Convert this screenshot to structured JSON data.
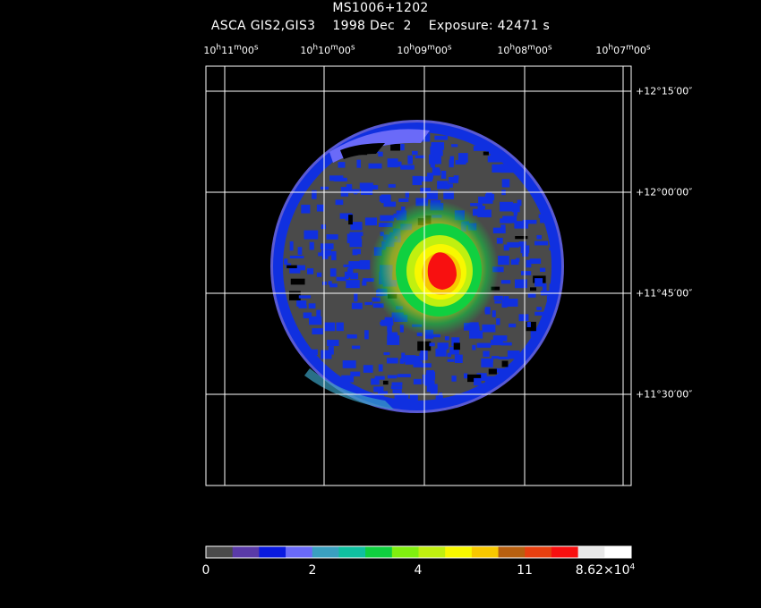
{
  "header": {
    "title": "MS1006+1202",
    "instrument": "ASCA GIS2,GIS3",
    "date": "1998 Dec  2",
    "exposure": "Exposure: 42471 s"
  },
  "axes": {
    "ra_labels": [
      {
        "h": "10",
        "m": "11",
        "s": "00"
      },
      {
        "h": "10",
        "m": "10",
        "s": "00"
      },
      {
        "h": "10",
        "m": "09",
        "s": "00"
      },
      {
        "h": "10",
        "m": "08",
        "s": "00"
      },
      {
        "h": "10",
        "m": "07",
        "s": "00"
      }
    ],
    "dec_labels": [
      "+12°15′00″",
      "+12°00′00″",
      "+11°45′00″",
      "+11°30′00″"
    ]
  },
  "colorbar": {
    "colors": [
      "#4a4a4a",
      "#5a3aa8",
      "#0a1ae0",
      "#6a6af8",
      "#3aa0c0",
      "#10c0a0",
      "#10d040",
      "#80f010",
      "#c0f010",
      "#f8f800",
      "#f8c800",
      "#b86010",
      "#e84010",
      "#f81010",
      "#e8e8e8",
      "#ffffff"
    ],
    "tick_labels": [
      "0",
      "2",
      "4",
      "11"
    ],
    "max_label": "8.62×10",
    "max_exponent": "4"
  },
  "image_colors": {
    "background": "#4a4a4a",
    "low": "#1030e0",
    "mid": "#10d040",
    "high": "#f8c800",
    "peak": "#f81010",
    "frame": "#ffffff"
  }
}
